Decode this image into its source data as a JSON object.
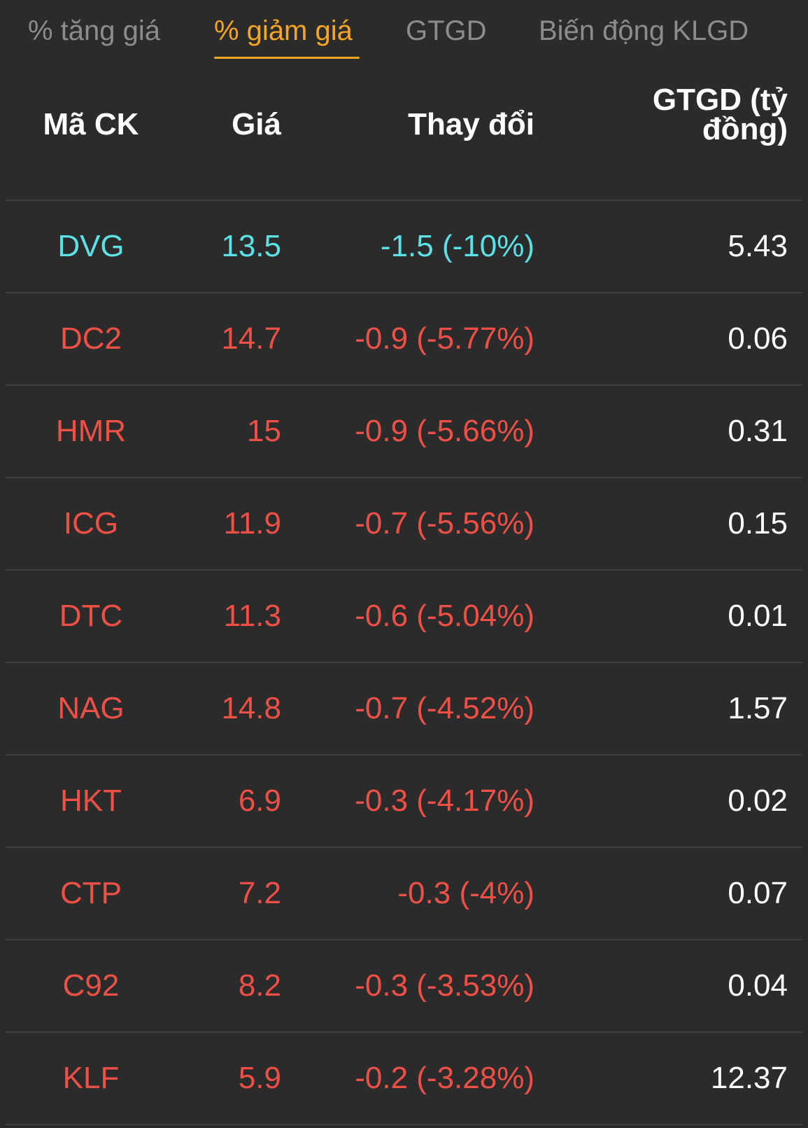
{
  "colors": {
    "background": "#2b2b2b",
    "active_tab": "#f5a623",
    "inactive_tab": "#8c8c8c",
    "floor": "#5ce1e6",
    "down": "#ef5046",
    "text": "#ffffff",
    "divider": "#3f3f3f"
  },
  "tabs": [
    {
      "label": "% tăng giá",
      "active": false
    },
    {
      "label": "% giảm giá",
      "active": true
    },
    {
      "label": "GTGD",
      "active": false
    },
    {
      "label": "Biến động KLGD",
      "active": false
    }
  ],
  "table": {
    "headers": {
      "code": "Mã CK",
      "price": "Giá",
      "change": "Thay đổi",
      "value_line1": "GTGD (tỷ",
      "value_line2": "đồng)"
    },
    "rows": [
      {
        "code": "DVG",
        "price": "13.5",
        "change": "-1.5 (-10%)",
        "value": "5.43",
        "status": "floor"
      },
      {
        "code": "DC2",
        "price": "14.7",
        "change": "-0.9 (-5.77%)",
        "value": "0.06",
        "status": "down"
      },
      {
        "code": "HMR",
        "price": "15",
        "change": "-0.9 (-5.66%)",
        "value": "0.31",
        "status": "down"
      },
      {
        "code": "ICG",
        "price": "11.9",
        "change": "-0.7 (-5.56%)",
        "value": "0.15",
        "status": "down"
      },
      {
        "code": "DTC",
        "price": "11.3",
        "change": "-0.6 (-5.04%)",
        "value": "0.01",
        "status": "down"
      },
      {
        "code": "NAG",
        "price": "14.8",
        "change": "-0.7 (-4.52%)",
        "value": "1.57",
        "status": "down"
      },
      {
        "code": "HKT",
        "price": "6.9",
        "change": "-0.3 (-4.17%)",
        "value": "0.02",
        "status": "down"
      },
      {
        "code": "CTP",
        "price": "7.2",
        "change": "-0.3 (-4%)",
        "value": "0.07",
        "status": "down"
      },
      {
        "code": "C92",
        "price": "8.2",
        "change": "-0.3 (-3.53%)",
        "value": "0.04",
        "status": "down"
      },
      {
        "code": "KLF",
        "price": "5.9",
        "change": "-0.2 (-3.28%)",
        "value": "12.37",
        "status": "down"
      }
    ]
  }
}
